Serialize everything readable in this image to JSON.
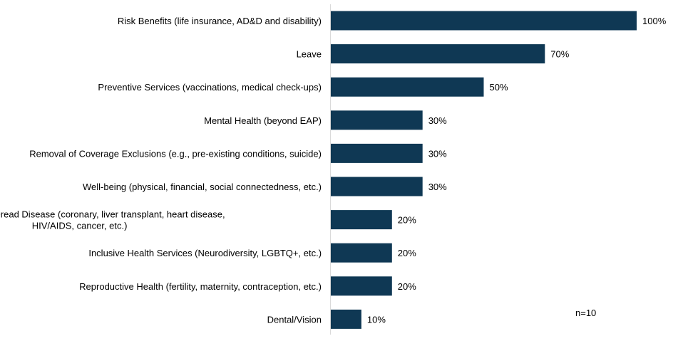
{
  "chart_data": {
    "type": "bar",
    "orientation": "horizontal",
    "categories": [
      "Risk Benefits (life insurance, AD&D and disability)",
      "Leave",
      "Preventive Services (vaccinations, medical check-ups)",
      "Mental Health (beyond EAP)",
      "Removal of Coverage Exclusions (e.g., pre-existing conditions, suicide)",
      "Well-being (physical, financial, social connectedness, etc.)",
      "Critical Illness/Dread Disease (coronary, liver transplant, heart disease, HIV/AIDS, cancer, etc.)",
      "Inclusive Health Services (Neurodiversity, LGBTQ+, etc.)",
      "Reproductive Health (fertility, maternity, contraception, etc.)",
      "Dental/Vision"
    ],
    "category_lines": [
      [
        "Risk Benefits (life insurance, AD&D and disability)"
      ],
      [
        "Leave"
      ],
      [
        "Preventive Services (vaccinations, medical check-ups)"
      ],
      [
        "Mental Health (beyond EAP)"
      ],
      [
        "Removal of Coverage Exclusions (e.g., pre-existing conditions, suicide)"
      ],
      [
        "Well-being (physical, financial, social connectedness, etc.)"
      ],
      [
        "Critical Illness/Dread Disease (coronary, liver transplant, heart disease,",
        "HIV/AIDS, cancer, etc.)"
      ],
      [
        "Inclusive Health Services (Neurodiversity, LGBTQ+, etc.)"
      ],
      [
        "Reproductive Health (fertility, maternity, contraception, etc.)"
      ],
      [
        "Dental/Vision"
      ]
    ],
    "values": [
      100,
      70,
      50,
      30,
      30,
      30,
      20,
      20,
      20,
      10
    ],
    "value_labels": [
      "100%",
      "70%",
      "50%",
      "30%",
      "30%",
      "30%",
      "20%",
      "20%",
      "20%",
      "10%"
    ],
    "xlim": [
      0,
      100
    ],
    "grid": false,
    "bar_color": "#0f3854",
    "axis_color": "#d9d9d9",
    "annotation": "n=10"
  }
}
